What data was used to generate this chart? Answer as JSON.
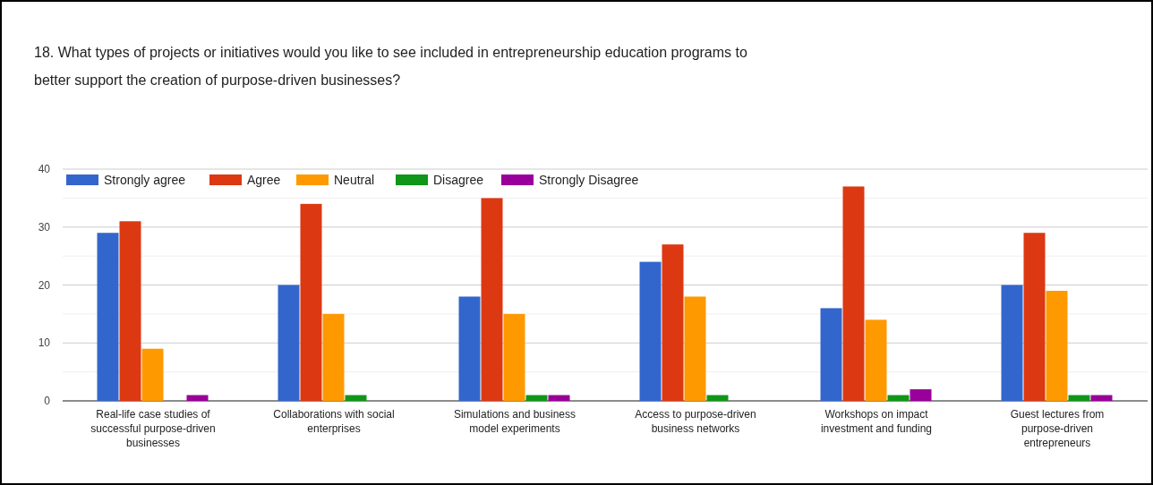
{
  "chart_data": {
    "type": "bar",
    "title": "18. What types of projects or initiatives would you like to see included in entrepreneurship education programs to better support the creation of purpose-driven businesses?",
    "categories": [
      "Real-life case studies of successful purpose-driven businesses",
      "Collaborations with social enterprises",
      "Simulations and business model experiments",
      "Access to purpose-driven business networks",
      "Workshops on impact investment and funding",
      "Guest lectures from purpose-driven entrepreneurs"
    ],
    "series": [
      {
        "name": "Strongly agree",
        "color": "#3366cc",
        "values": [
          29,
          20,
          18,
          24,
          16,
          20
        ]
      },
      {
        "name": "Agree",
        "color": "#dc3912",
        "values": [
          31,
          34,
          35,
          27,
          37,
          29
        ]
      },
      {
        "name": "Neutral",
        "color": "#ff9900",
        "values": [
          9,
          15,
          15,
          18,
          14,
          19
        ]
      },
      {
        "name": "Disagree",
        "color": "#109618",
        "values": [
          0,
          1,
          1,
          1,
          1,
          1
        ]
      },
      {
        "name": "Strongly Disagree",
        "color": "#990099",
        "values": [
          1,
          0,
          1,
          0,
          2,
          1
        ]
      }
    ],
    "ylim": [
      0,
      40
    ],
    "yticks": [
      0,
      {
        "value": 5,
        "label": null
      },
      10,
      {
        "value": 15,
        "label": null
      },
      20,
      {
        "value": 25,
        "label": null
      },
      30,
      {
        "value": 35,
        "label": null
      },
      40
    ],
    "grid": "y",
    "legend": "top left"
  }
}
